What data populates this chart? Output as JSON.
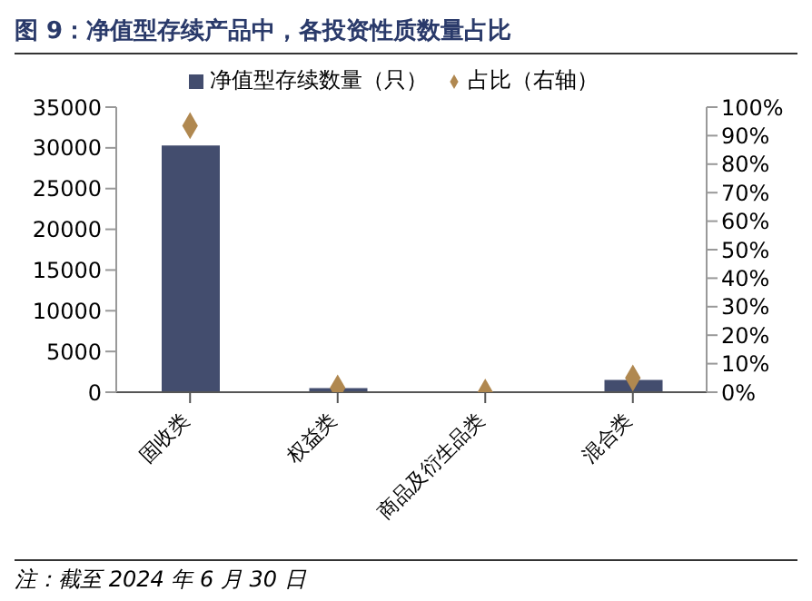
{
  "chart_data": {
    "type": "bar",
    "title": "图 9：净值型存续产品中，各投资性质数量占比",
    "categories": [
      "固收类",
      "权益类",
      "商品及衍生品类",
      "混合类"
    ],
    "series": [
      {
        "name": "净值型存续数量（只）",
        "color": "#434d6e",
        "values": [
          30300,
          500,
          0,
          1500
        ]
      },
      {
        "name": "占比（右轴）",
        "type": "scatter",
        "axis": "y2",
        "color": "#b08850",
        "values": [
          93.5,
          1.5,
          0,
          5
        ]
      }
    ],
    "ylim": [
      0,
      35000
    ],
    "yticks": [
      0,
      5000,
      10000,
      15000,
      20000,
      25000,
      30000,
      35000
    ],
    "y2lim": [
      0,
      100
    ],
    "y2ticks": [
      {
        "value": 0,
        "label": "0%"
      },
      {
        "value": 10,
        "label": "10%"
      },
      {
        "value": 20,
        "label": "20%"
      },
      {
        "value": 30,
        "label": "30%"
      },
      {
        "value": 40,
        "label": "40%"
      },
      {
        "value": 50,
        "label": "50%"
      },
      {
        "value": 60,
        "label": "60%"
      },
      {
        "value": 70,
        "label": "70%"
      },
      {
        "value": 80,
        "label": "80%"
      },
      {
        "value": 90,
        "label": "90%"
      },
      {
        "value": 100,
        "label": "100%"
      }
    ],
    "marker": "diamond",
    "grid": false,
    "legend": "top",
    "annotations": [
      "注：截至 2024 年 6 月 30 日"
    ]
  }
}
